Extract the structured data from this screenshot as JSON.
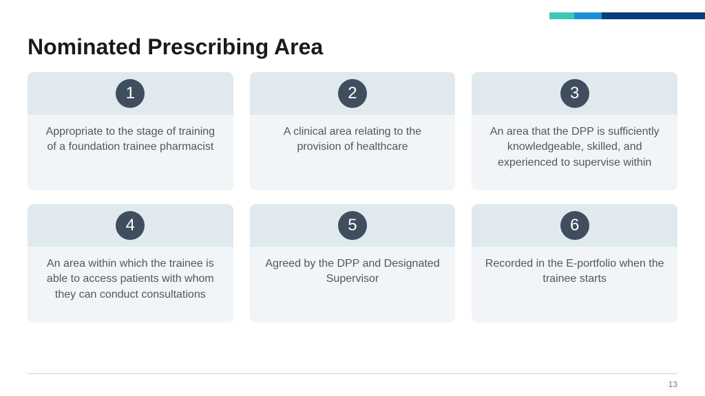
{
  "title": "Nominated Prescribing Area",
  "page_number": "13",
  "accent_bar": {
    "segments": [
      {
        "color": "#3cc7b7",
        "width": 36
      },
      {
        "color": "#1b8fd6",
        "width": 40
      },
      {
        "color": "#0a3f7a",
        "width": 150
      }
    ]
  },
  "colors": {
    "card_header_bg": "#e0e9ee",
    "card_body_bg": "#f2f5f7",
    "badge_bg": "#3e4e5e",
    "body_text": "#4a5862",
    "title_text": "#1a1a1a"
  },
  "cards": [
    {
      "num": "1",
      "text": "Appropriate to the stage of training of a foundation trainee pharmacist"
    },
    {
      "num": "2",
      "text": "A clinical area relating to the provision of healthcare"
    },
    {
      "num": "3",
      "text": "An area that the DPP is sufficiently knowledgeable, skilled, and experienced to supervise within"
    },
    {
      "num": "4",
      "text": "An area within which the trainee is able to access patients with whom they can conduct consultations"
    },
    {
      "num": "5",
      "text": "Agreed by the DPP and Designated Supervisor"
    },
    {
      "num": "6",
      "text": "Recorded in the E-portfolio when the trainee starts"
    }
  ]
}
